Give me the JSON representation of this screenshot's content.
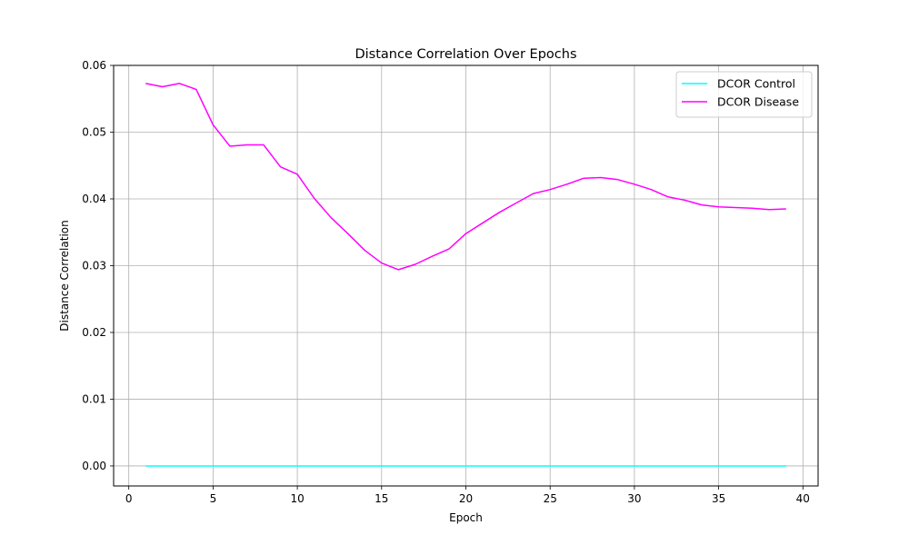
{
  "chart_data": {
    "type": "line",
    "title": "Distance Correlation Over Epochs",
    "xlabel": "Epoch",
    "ylabel": "Distance Correlation",
    "xlim": [
      -0.9,
      40.9
    ],
    "ylim": [
      -0.003,
      0.06
    ],
    "xticks": [
      0,
      5,
      10,
      15,
      20,
      25,
      30,
      35,
      40
    ],
    "yticks": [
      0.0,
      0.01,
      0.02,
      0.03,
      0.04,
      0.05,
      0.06
    ],
    "ytick_labels": [
      "0.00",
      "0.01",
      "0.02",
      "0.03",
      "0.04",
      "0.05",
      "0.06"
    ],
    "grid": true,
    "legend_position": "top-right",
    "x": [
      1,
      2,
      3,
      4,
      5,
      6,
      7,
      8,
      9,
      10,
      11,
      12,
      13,
      14,
      15,
      16,
      17,
      18,
      19,
      20,
      21,
      22,
      23,
      24,
      25,
      26,
      27,
      28,
      29,
      30,
      31,
      32,
      33,
      34,
      35,
      36,
      37,
      38,
      39
    ],
    "series": [
      {
        "name": "DCOR Control",
        "color": "#00ffff",
        "values": [
          0,
          0,
          0,
          0,
          0,
          0,
          0,
          0,
          0,
          0,
          0,
          0,
          0,
          0,
          0,
          0,
          0,
          0,
          0,
          0,
          0,
          0,
          0,
          0,
          0,
          0,
          0,
          0,
          0,
          0,
          0,
          0,
          0,
          0,
          0,
          0,
          0,
          0,
          0
        ]
      },
      {
        "name": "DCOR Disease",
        "color": "#ff00ff",
        "values": [
          0.0573,
          0.0568,
          0.0573,
          0.0564,
          0.0511,
          0.0479,
          0.0481,
          0.0481,
          0.0448,
          0.0437,
          0.0401,
          0.0372,
          0.0348,
          0.0323,
          0.0304,
          0.0294,
          0.0302,
          0.0314,
          0.0325,
          0.0348,
          0.0364,
          0.038,
          0.0394,
          0.0408,
          0.0414,
          0.0422,
          0.0431,
          0.0432,
          0.0429,
          0.0422,
          0.0414,
          0.0403,
          0.0398,
          0.0391,
          0.0388,
          0.0387,
          0.0386,
          0.0384,
          0.0385
        ]
      }
    ]
  }
}
